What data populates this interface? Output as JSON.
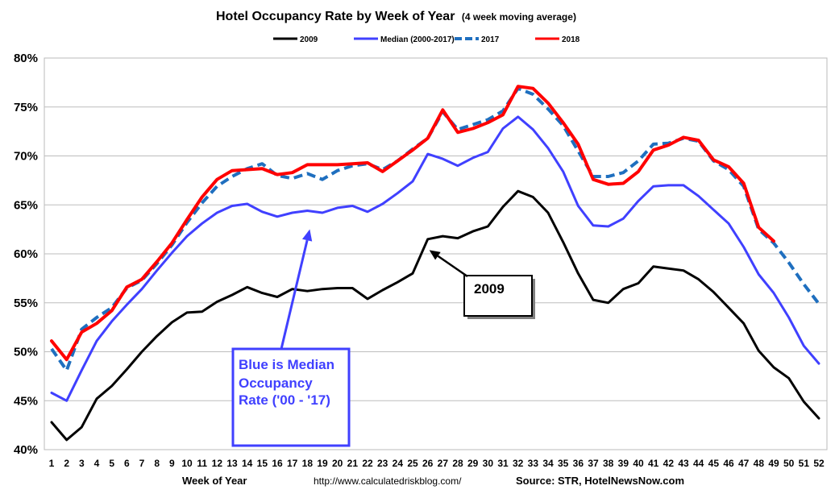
{
  "chart_data": {
    "type": "line",
    "title": "Hotel Occupancy Rate by  Week of Year",
    "subtitle": "(4 week moving average)",
    "xlabel": "Week of Year",
    "ylabel": "",
    "ylim": [
      40,
      80
    ],
    "yticks": [
      40,
      45,
      50,
      55,
      60,
      65,
      70,
      75,
      80
    ],
    "ytick_labels": [
      "40%",
      "45%",
      "50%",
      "55%",
      "60%",
      "65%",
      "70%",
      "75%",
      "80%"
    ],
    "x": [
      1,
      2,
      3,
      4,
      5,
      6,
      7,
      8,
      9,
      10,
      11,
      12,
      13,
      14,
      15,
      16,
      17,
      18,
      19,
      20,
      21,
      22,
      23,
      24,
      25,
      26,
      27,
      28,
      29,
      30,
      31,
      32,
      33,
      34,
      35,
      36,
      37,
      38,
      39,
      40,
      41,
      42,
      43,
      44,
      45,
      46,
      47,
      48,
      49,
      50,
      51,
      52
    ],
    "grid": true,
    "legend_position": "top-center",
    "series": [
      {
        "name": "2009",
        "color": "#000000",
        "dashed": false,
        "values": [
          42.8,
          41.0,
          42.3,
          45.2,
          46.5,
          48.2,
          50.0,
          51.6,
          53.0,
          54.0,
          54.1,
          55.1,
          55.8,
          56.6,
          56.0,
          55.6,
          56.4,
          56.2,
          56.4,
          56.5,
          56.5,
          55.4,
          56.3,
          57.1,
          58.0,
          61.5,
          61.8,
          61.6,
          62.3,
          62.8,
          64.8,
          66.4,
          65.8,
          64.2,
          61.2,
          58.0,
          55.3,
          55.0,
          56.4,
          57.0,
          58.7,
          58.5,
          58.3,
          57.4,
          56.1,
          54.5,
          52.9,
          50.1,
          48.4,
          47.3,
          44.9,
          43.2
        ]
      },
      {
        "name": "Median (2000-2017)",
        "color": "#4040ff",
        "dashed": false,
        "values": [
          45.8,
          45.0,
          48.1,
          51.1,
          53.1,
          54.8,
          56.4,
          58.3,
          60.1,
          61.8,
          63.1,
          64.2,
          64.9,
          65.1,
          64.3,
          63.8,
          64.2,
          64.4,
          64.2,
          64.7,
          64.9,
          64.3,
          65.1,
          66.2,
          67.4,
          70.2,
          69.7,
          69.0,
          69.8,
          70.4,
          72.8,
          74.0,
          72.7,
          70.8,
          68.4,
          64.9,
          62.9,
          62.8,
          63.6,
          65.4,
          66.9,
          67.0,
          67.0,
          65.9,
          64.5,
          63.1,
          60.7,
          57.9,
          56.0,
          53.5,
          50.6,
          48.8
        ]
      },
      {
        "name": "2017",
        "color": "#1f6fbf",
        "dashed": true,
        "values": [
          50.3,
          48.1,
          52.3,
          53.5,
          54.5,
          56.5,
          57.3,
          59.0,
          60.9,
          63.2,
          65.2,
          66.9,
          67.9,
          68.7,
          69.2,
          68.0,
          67.7,
          68.2,
          67.6,
          68.5,
          69.0,
          69.2,
          68.6,
          69.5,
          70.7,
          71.8,
          74.5,
          72.7,
          73.2,
          73.7,
          74.6,
          76.9,
          76.3,
          74.8,
          73.1,
          70.5,
          67.9,
          67.9,
          68.3,
          69.5,
          71.2,
          71.3,
          71.8,
          71.5,
          69.5,
          68.6,
          66.9,
          62.5,
          61.1,
          59.1,
          56.9,
          54.9
        ]
      },
      {
        "name": "2018",
        "color": "#ff0000",
        "dashed": false,
        "values": [
          51.1,
          49.2,
          52.0,
          52.9,
          54.2,
          56.6,
          57.4,
          59.2,
          61.1,
          63.5,
          65.8,
          67.6,
          68.5,
          68.6,
          68.7,
          68.1,
          68.3,
          69.1,
          69.1,
          69.1,
          69.2,
          69.3,
          68.4,
          69.5,
          70.6,
          71.8,
          74.7,
          72.4,
          72.8,
          73.4,
          74.2,
          77.1,
          76.9,
          75.4,
          73.4,
          71.2,
          67.6,
          67.1,
          67.2,
          68.4,
          70.6,
          71.1,
          71.9,
          71.6,
          69.6,
          68.9,
          67.2,
          62.7,
          61.3,
          null,
          null,
          null
        ]
      }
    ],
    "annotations": [
      {
        "text_lines": [
          "Blue is Median",
          "Occupancy",
          "Rate ('00 - '17)"
        ],
        "color": "#4040ff",
        "points_to_week": 18,
        "points_to_value": 63.0
      },
      {
        "text_lines": [
          "2009"
        ],
        "color": "#000000",
        "points_to_week": 26,
        "points_to_value": 60.3
      }
    ]
  },
  "footer": {
    "xlabel": "Week of Year",
    "url": "http://www.calculatedriskblog.com/",
    "source": "Source: STR, HotelNewsNow.com"
  }
}
